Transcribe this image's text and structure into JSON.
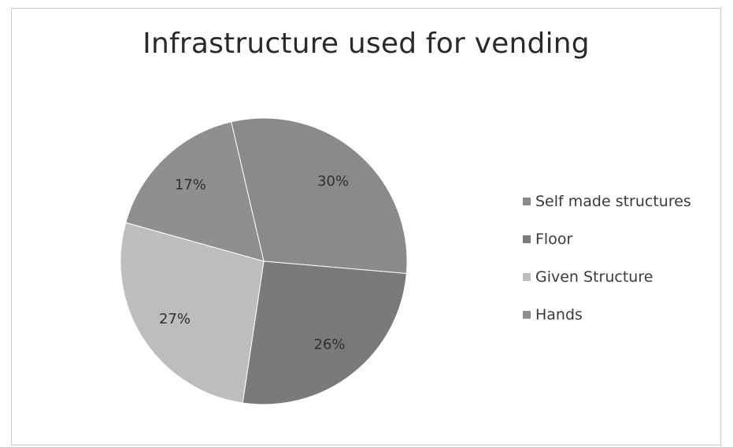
{
  "chart_data": {
    "type": "pie",
    "title": "Infrastructure used for vending",
    "slices": [
      {
        "name": "Self made structures",
        "value": 30,
        "label": "30%",
        "color": "#8a8a8a"
      },
      {
        "name": "Floor",
        "value": 26,
        "label": "26%",
        "color": "#7a7a7a"
      },
      {
        "name": "Given Structure",
        "value": 27,
        "label": "27%",
        "color": "#bdbdbd"
      },
      {
        "name": "Hands",
        "value": 17,
        "label": "17%",
        "color": "#8f8f8f"
      }
    ],
    "legend_position": "right"
  }
}
